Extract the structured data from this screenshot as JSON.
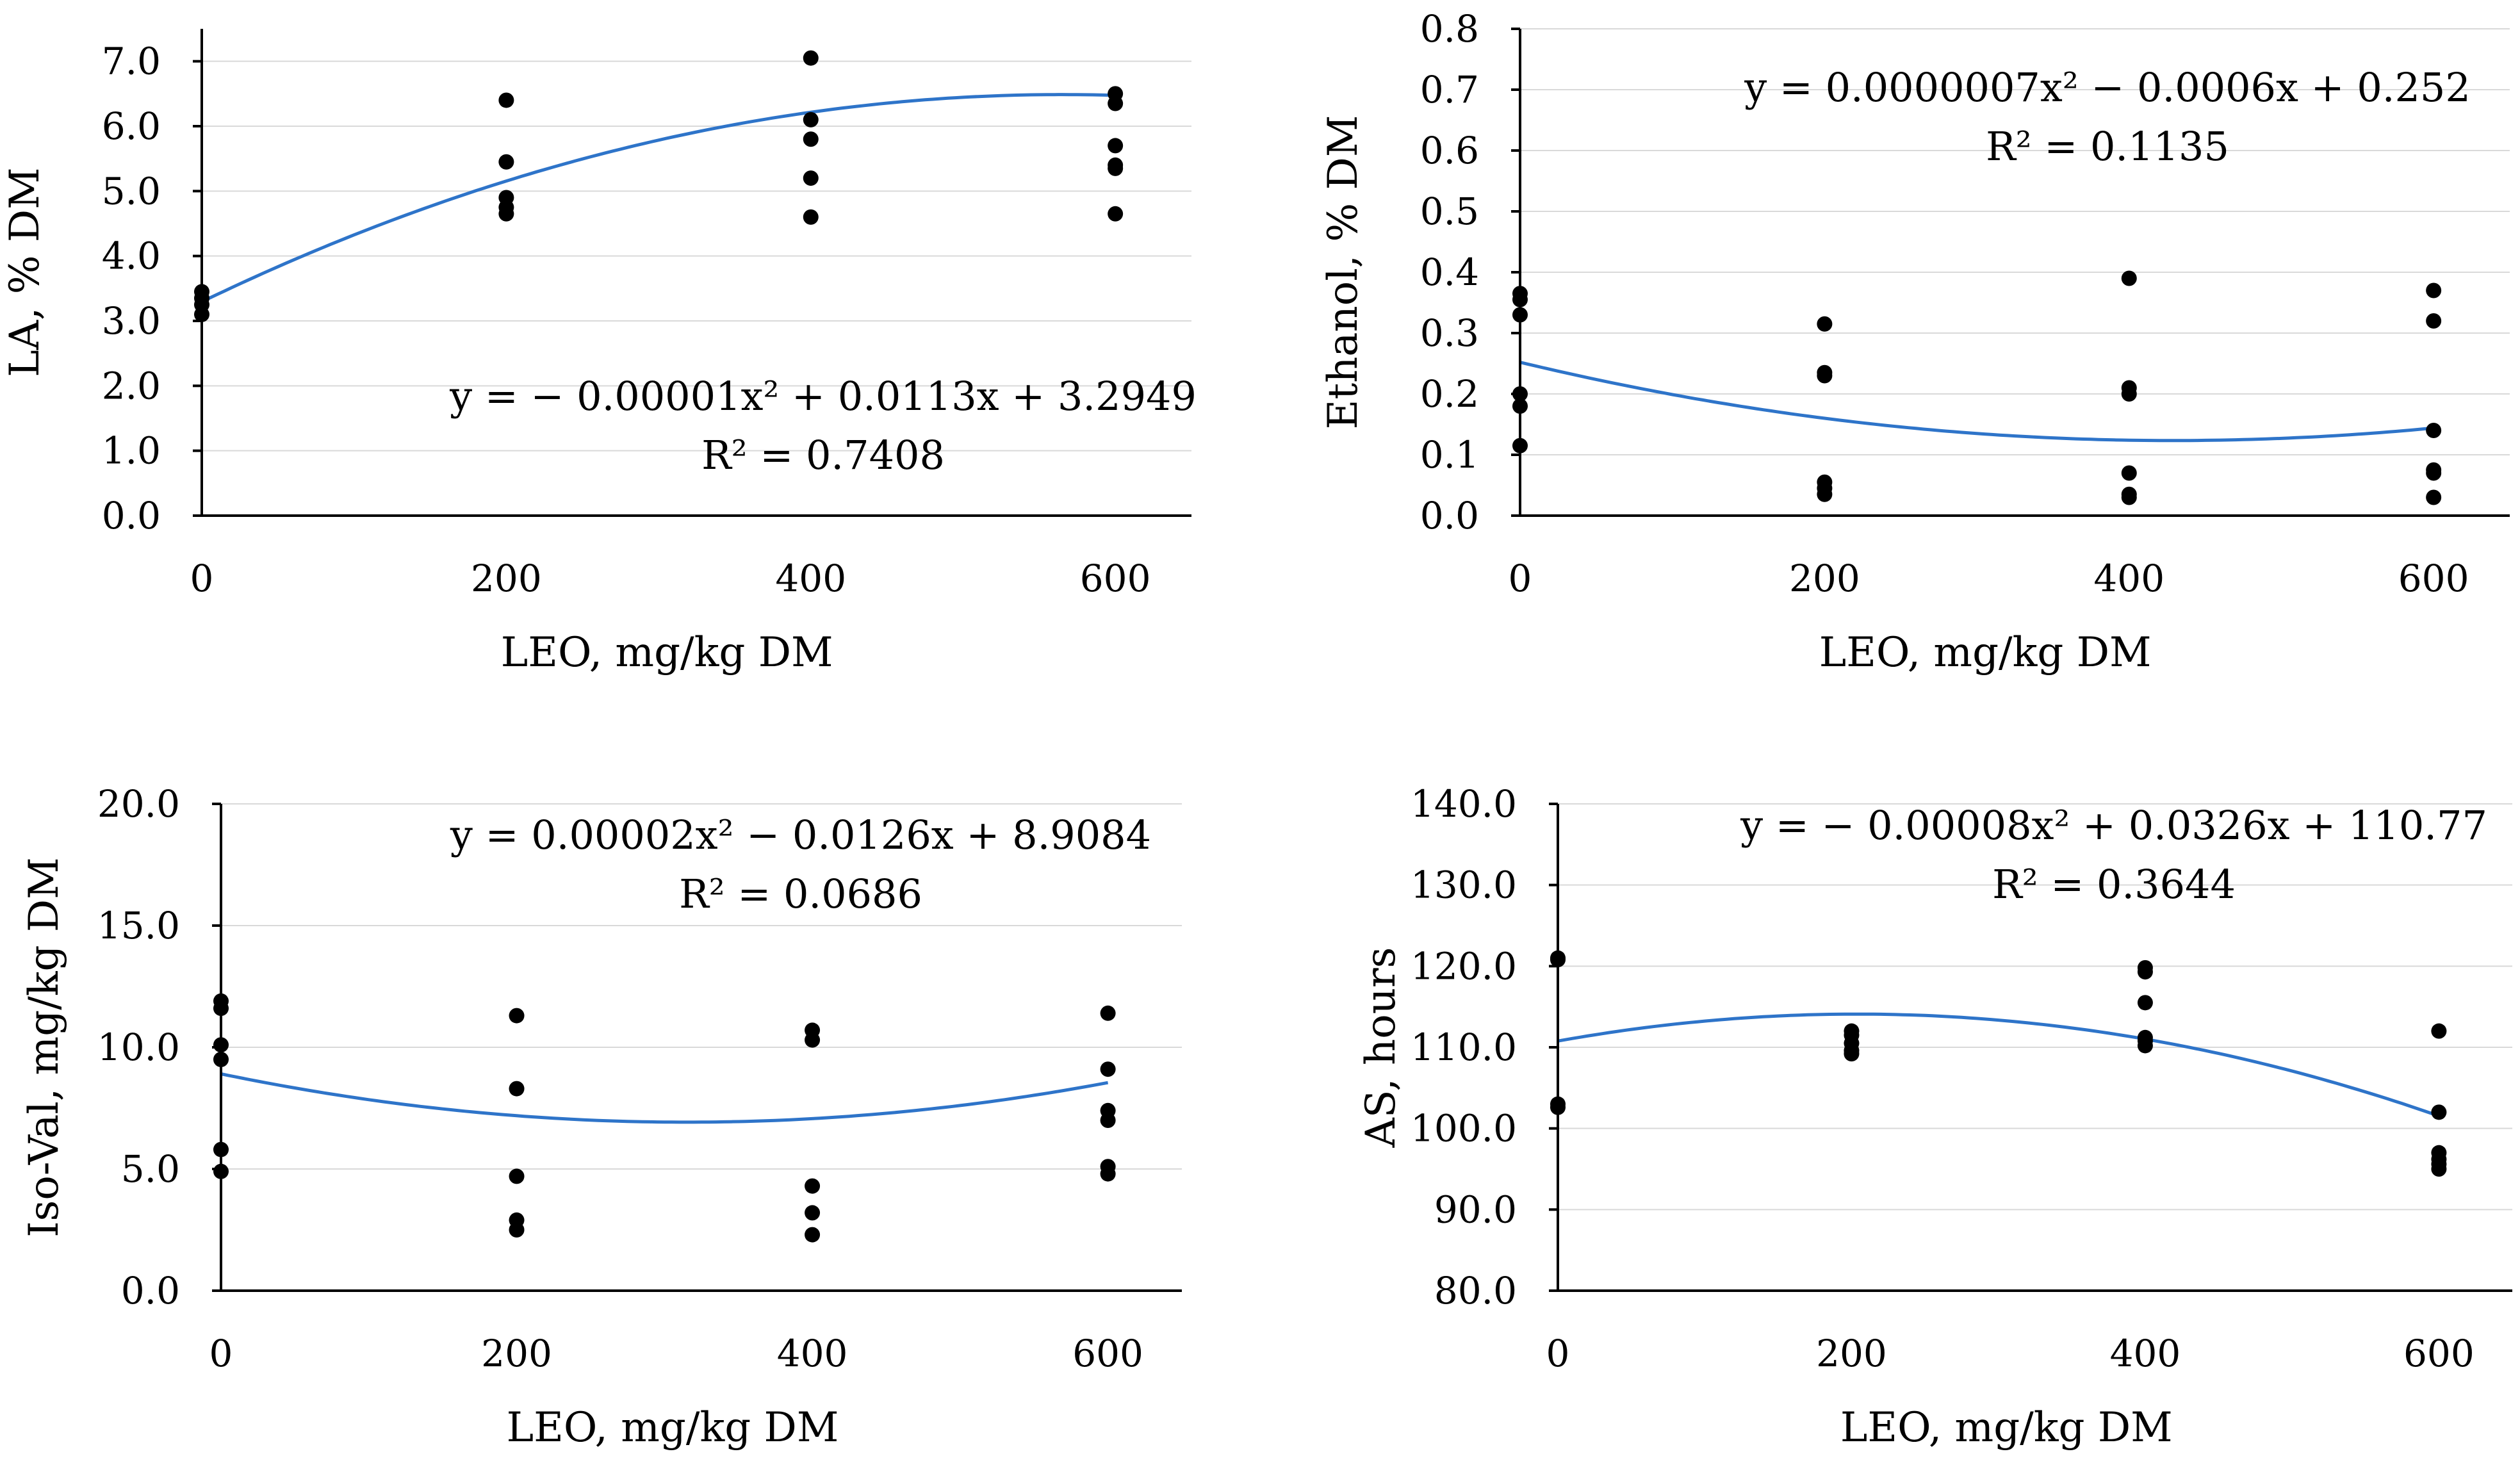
{
  "chart_data": [
    {
      "type": "scatter",
      "xlabel": "LEO, mg/kg DM",
      "ylabel": "LA, % DM",
      "xlim": [
        0,
        650
      ],
      "ylim": [
        0,
        7.5
      ],
      "xticks": [
        0,
        200,
        400,
        600
      ],
      "xtick_labels": [
        "0",
        "200",
        "400",
        "600"
      ],
      "yticks": [
        0,
        1,
        2,
        3,
        4,
        5,
        6,
        7
      ],
      "ytick_labels": [
        "0.0",
        "1.0",
        "2.0",
        "3.0",
        "4.0",
        "5.0",
        "6.0",
        "7.0"
      ],
      "grid": "horizontal",
      "points": [
        [
          0,
          3.45
        ],
        [
          0,
          3.35
        ],
        [
          0,
          3.25
        ],
        [
          0,
          3.1
        ],
        [
          200,
          6.4
        ],
        [
          200,
          5.45
        ],
        [
          200,
          4.9
        ],
        [
          200,
          4.75
        ],
        [
          200,
          4.65
        ],
        [
          400,
          7.05
        ],
        [
          400,
          6.1
        ],
        [
          400,
          5.8
        ],
        [
          400,
          5.2
        ],
        [
          400,
          4.6
        ],
        [
          600,
          6.5
        ],
        [
          600,
          6.35
        ],
        [
          600,
          5.7
        ],
        [
          600,
          5.4
        ],
        [
          600,
          5.35
        ],
        [
          600,
          4.65
        ]
      ],
      "trendline": {
        "a": -1e-05,
        "b": 0.0113,
        "c": 3.2949,
        "x_range": [
          0,
          600
        ]
      },
      "equation": "y = − 0.00001x² + 0.0113x + 3.2949",
      "r_squared": "R² = 0.7408",
      "marker_color": "#000000",
      "trend_color": "#2e74c9"
    },
    {
      "type": "scatter",
      "xlabel": "LEO, mg/kg DM",
      "ylabel": "Ethanol, % DM",
      "xlim": [
        0,
        650
      ],
      "ylim": [
        0,
        0.8
      ],
      "xticks": [
        0,
        200,
        400,
        600
      ],
      "xtick_labels": [
        "0",
        "200",
        "400",
        "600"
      ],
      "yticks": [
        0,
        0.1,
        0.2,
        0.3,
        0.4,
        0.5,
        0.6,
        0.7,
        0.8
      ],
      "ytick_labels": [
        "0.0",
        "0.1",
        "0.2",
        "0.3",
        "0.4",
        "0.5",
        "0.6",
        "0.7",
        "0.8"
      ],
      "grid": "horizontal",
      "points": [
        [
          0,
          0.365
        ],
        [
          0,
          0.355
        ],
        [
          0,
          0.33
        ],
        [
          0,
          0.2
        ],
        [
          0,
          0.18
        ],
        [
          0,
          0.115
        ],
        [
          200,
          0.315
        ],
        [
          200,
          0.235
        ],
        [
          200,
          0.23
        ],
        [
          200,
          0.055
        ],
        [
          200,
          0.045
        ],
        [
          200,
          0.035
        ],
        [
          400,
          0.39
        ],
        [
          400,
          0.21
        ],
        [
          400,
          0.2
        ],
        [
          400,
          0.07
        ],
        [
          400,
          0.035
        ],
        [
          400,
          0.03
        ],
        [
          600,
          0.37
        ],
        [
          600,
          0.32
        ],
        [
          600,
          0.14
        ],
        [
          600,
          0.075
        ],
        [
          600,
          0.07
        ],
        [
          600,
          0.03
        ]
      ],
      "trendline": {
        "a": 7e-07,
        "b": -0.0006,
        "c": 0.252,
        "x_range": [
          0,
          600
        ]
      },
      "equation": "y = 0.0000007x² − 0.0006x + 0.252",
      "r_squared": "R² = 0.1135",
      "marker_color": "#000000",
      "trend_color": "#2e74c9"
    },
    {
      "type": "scatter",
      "xlabel": "LEO, mg/kg DM",
      "ylabel": "Iso-Val, mg/kg DM",
      "xlim": [
        0,
        650
      ],
      "ylim": [
        0,
        20
      ],
      "xticks": [
        0,
        200,
        400,
        600
      ],
      "xtick_labels": [
        "0",
        "200",
        "400",
        "600"
      ],
      "yticks": [
        0,
        5,
        10,
        15,
        20
      ],
      "ytick_labels": [
        "0.0",
        "5.0",
        "10.0",
        "15.0",
        "20.0"
      ],
      "grid": "horizontal",
      "points": [
        [
          0,
          11.9
        ],
        [
          0,
          11.6
        ],
        [
          0,
          10.1
        ],
        [
          0,
          9.5
        ],
        [
          0,
          5.8
        ],
        [
          0,
          4.9
        ],
        [
          200,
          11.3
        ],
        [
          200,
          8.3
        ],
        [
          200,
          4.7
        ],
        [
          200,
          2.9
        ],
        [
          200,
          2.5
        ],
        [
          400,
          10.7
        ],
        [
          400,
          10.3
        ],
        [
          400,
          4.3
        ],
        [
          400,
          3.2
        ],
        [
          400,
          2.3
        ],
        [
          600,
          11.4
        ],
        [
          600,
          9.1
        ],
        [
          600,
          7.4
        ],
        [
          600,
          7.0
        ],
        [
          600,
          5.1
        ],
        [
          600,
          4.8
        ]
      ],
      "trendline": {
        "a": 2e-05,
        "b": -0.0126,
        "c": 8.9084,
        "x_range": [
          0,
          600
        ]
      },
      "equation": "y = 0.00002x² − 0.0126x + 8.9084",
      "r_squared": "R² = 0.0686",
      "marker_color": "#000000",
      "trend_color": "#2e74c9"
    },
    {
      "type": "scatter",
      "xlabel": "LEO, mg/kg DM",
      "ylabel": "AS, hours",
      "xlim": [
        0,
        650
      ],
      "ylim": [
        80,
        140
      ],
      "xticks": [
        0,
        200,
        400,
        600
      ],
      "xtick_labels": [
        "0",
        "200",
        "400",
        "600"
      ],
      "yticks": [
        80,
        90,
        100,
        110,
        120,
        130,
        140
      ],
      "ytick_labels": [
        "80.0",
        "90.0",
        "100.0",
        "110.0",
        "120.0",
        "130.0",
        "140.0"
      ],
      "grid": "horizontal",
      "points": [
        [
          0,
          121
        ],
        [
          0,
          120.8
        ],
        [
          0,
          103
        ],
        [
          0,
          102.6
        ],
        [
          200,
          112
        ],
        [
          200,
          111.5
        ],
        [
          200,
          110.5
        ],
        [
          200,
          109.6
        ],
        [
          200,
          109.2
        ],
        [
          400,
          119.8
        ],
        [
          400,
          119.3
        ],
        [
          400,
          115.5
        ],
        [
          400,
          111.2
        ],
        [
          400,
          110.8
        ],
        [
          400,
          110.2
        ],
        [
          600,
          112
        ],
        [
          600,
          102
        ],
        [
          600,
          97
        ],
        [
          600,
          96.2
        ],
        [
          600,
          95.6
        ],
        [
          600,
          95
        ]
      ],
      "trendline": {
        "a": -8e-05,
        "b": 0.0326,
        "c": 110.77,
        "x_range": [
          0,
          600
        ]
      },
      "equation": "y = − 0.00008x² + 0.0326x + 110.77",
      "r_squared": "R² = 0.3644",
      "marker_color": "#000000",
      "trend_color": "#2e74c9"
    }
  ]
}
